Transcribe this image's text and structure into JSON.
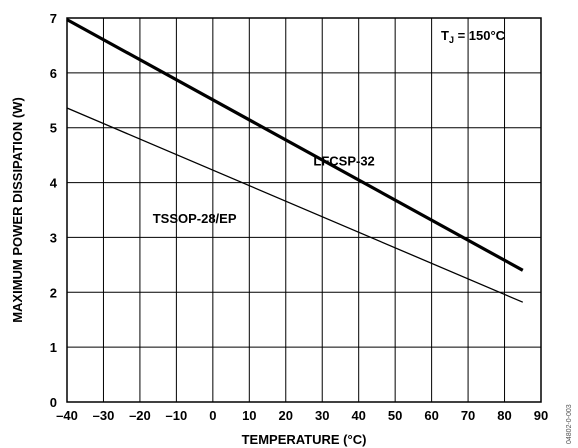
{
  "chart_data": {
    "type": "line",
    "xlabel": "TEMPERATURE (°C)",
    "ylabel": "MAXIMUM POWER DISSIPATION (W)",
    "xlim": [
      -40,
      90
    ],
    "ylim": [
      0,
      7
    ],
    "xticks": [
      -40,
      -30,
      -20,
      -10,
      0,
      10,
      20,
      30,
      40,
      50,
      60,
      70,
      80,
      90
    ],
    "yticks": [
      0,
      1,
      2,
      3,
      4,
      5,
      6,
      7
    ],
    "grid": true,
    "series": [
      {
        "name": "LFCSP-32",
        "x": [
          -40,
          85
        ],
        "y": [
          6.97,
          2.4
        ],
        "label_at": [
          36,
          4.4
        ]
      },
      {
        "name": "TSSOP-28/EP",
        "x": [
          -40,
          85
        ],
        "y": [
          5.36,
          1.82
        ],
        "label_at": [
          -5,
          3.35
        ]
      }
    ],
    "annotation": {
      "main": "T",
      "sub": "J",
      "rest": " = 150°C"
    },
    "figure_code": "04802-0-003"
  }
}
